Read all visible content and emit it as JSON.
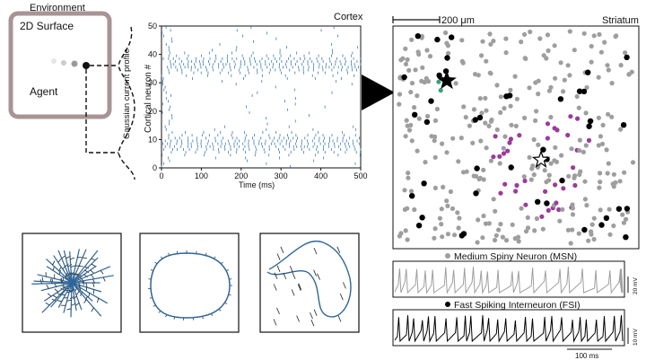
{
  "environment": {
    "title": "Environment",
    "surface_label": "2D Surface",
    "agent_label": "Agent",
    "profile_label": "Gaussian current profile"
  },
  "cortex": {
    "title": "Cortex",
    "ylabel": "Cortical neuron #",
    "xlabel": "Time (ms)",
    "x_ticks": [
      "0",
      "100",
      "200",
      "300",
      "400",
      "500"
    ],
    "y_ticks": [
      "0",
      "10",
      "20",
      "30",
      "40",
      "50"
    ],
    "raster_color": "#3a79b8"
  },
  "striatum": {
    "title": "Striatum",
    "scalebar_label": "200 μm",
    "msn_color": "#9e9e9e",
    "fsi_color": "#000000",
    "highlight_green": "#3aa17e",
    "highlight_purple": "#9b3b9b"
  },
  "traces": {
    "msn_label": "Medium Spiny Neuron (MSN)",
    "fsi_label": "Fast Spiking Interneuron (FSI)",
    "msn_scale": "20 mV",
    "fsi_scale": "10 mV",
    "time_scale": "100 ms"
  },
  "trajectories": {
    "line_color": "#2f6699",
    "arrow_color": "#222222"
  }
}
